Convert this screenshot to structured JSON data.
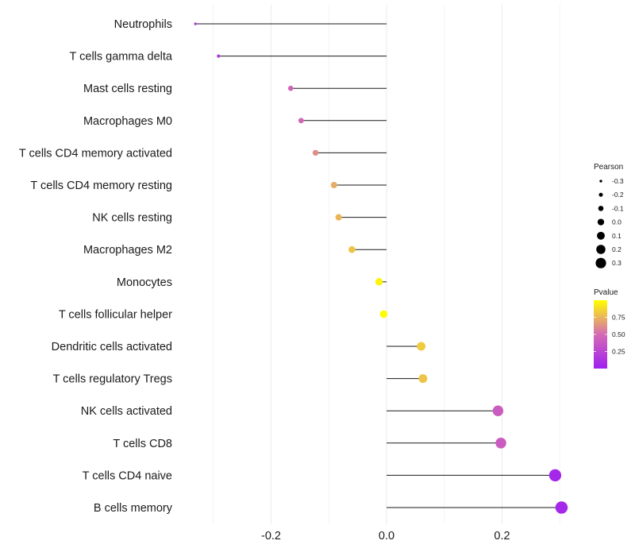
{
  "chart_data": {
    "type": "lollipop",
    "categories": [
      "Neutrophils",
      "T cells gamma delta",
      "Mast cells resting",
      "Macrophages M0",
      "T cells CD4 memory activated",
      "T cells CD4 memory resting",
      "NK cells resting",
      "Macrophages M2",
      "Monocytes",
      "T cells follicular helper",
      "Dendritic cells activated",
      "T cells regulatory  Tregs",
      "NK cells activated",
      "T cells CD8",
      "T cells CD4 naive",
      "B cells memory"
    ],
    "values": [
      -0.331,
      -0.291,
      -0.166,
      -0.148,
      -0.123,
      -0.091,
      -0.083,
      -0.06,
      -0.013,
      -0.005,
      0.06,
      0.063,
      0.193,
      0.198,
      0.292,
      0.303
    ],
    "pvalues": [
      0.1,
      0.15,
      0.45,
      0.47,
      0.62,
      0.72,
      0.75,
      0.8,
      0.96,
      0.99,
      0.82,
      0.8,
      0.4,
      0.4,
      0.05,
      0.05
    ],
    "xlim": [
      -0.335,
      0.32
    ],
    "xticks": [
      -0.2,
      0.0,
      0.2
    ],
    "xtick_labels": [
      "-0.2",
      "0.0",
      "0.2"
    ],
    "grid": true,
    "size_legend": {
      "title": "Pearson",
      "labels": [
        "-0.3",
        "-0.2",
        "-0.1",
        "0.0",
        "0.1",
        "0.2",
        "0.3"
      ],
      "values": [
        -0.3,
        -0.2,
        -0.1,
        0.0,
        0.1,
        0.2,
        0.3
      ]
    },
    "color_legend": {
      "title": "Pvalue",
      "labels": [
        "0.75",
        "0.50",
        "0.25"
      ],
      "values": [
        0.75,
        0.5,
        0.25
      ],
      "range": [
        0.0,
        1.0
      ],
      "low_color": "#a020f0",
      "mid_color": "#d46bb4",
      "high_color": "#ffff00"
    },
    "legend_position": "right",
    "xlabel": "",
    "ylabel": "",
    "title": ""
  }
}
